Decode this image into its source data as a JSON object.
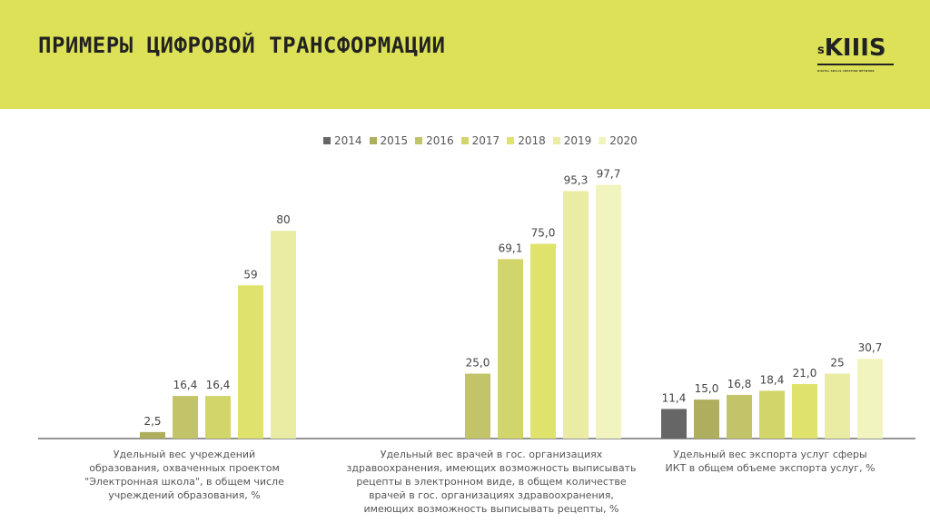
{
  "header": {
    "title": "ПРИМЕРЫ ЦИФРОВОЙ ТРАНСФОРМАЦИИ",
    "logo_small": "s",
    "logo_big": "KIIIS",
    "logo_tagline": "DIGITAL SKILLS CREATION NETWORK"
  },
  "colors": {
    "header_bg": "#dce157",
    "axis": "#555555",
    "series": [
      "#666666",
      "#aeae5e",
      "#c3c46a",
      "#d2d569",
      "#dfe36b",
      "#eaeca4",
      "#f2f4bf"
    ]
  },
  "chart_data": {
    "type": "bar",
    "legend_position": "top",
    "grid": false,
    "series_names": [
      "2014",
      "2015",
      "2016",
      "2017",
      "2018",
      "2019",
      "2020"
    ],
    "categories": [
      {
        "label_lines": [
          "Удельный вес учреждений",
          "образования, охваченных проектом",
          "\"Электронная школа\", в общем числе",
          "учреждений образования, %"
        ],
        "values": [
          null,
          2.5,
          16.4,
          16.4,
          59,
          80,
          null
        ],
        "value_labels": [
          "",
          "2,5",
          "16,4",
          "16,4",
          "59",
          "80",
          ""
        ]
      },
      {
        "label_lines": [
          "Удельный вес врачей в гос. организациях",
          "здравоохранения, имеющих возможность выписывать",
          "рецепты в электронном виде, в общем количестве",
          "врачей в гос. организациях здравоохранения,",
          "имеющих возможность выписывать рецепты, %"
        ],
        "values": [
          null,
          null,
          25.0,
          69.1,
          75.0,
          95.3,
          97.7
        ],
        "value_labels": [
          "",
          "",
          "25,0",
          "69,1",
          "75,0",
          "95,3",
          "97,7"
        ]
      },
      {
        "label_lines": [
          "Удельный вес экспорта услуг сферы",
          "ИКТ в общем объеме экспорта услуг, %"
        ],
        "values": [
          11.4,
          15.0,
          16.8,
          18.4,
          21.0,
          25,
          30.7
        ],
        "value_labels": [
          "11,4",
          "15,0",
          "16,8",
          "18,4",
          "21,0",
          "25",
          "30,7"
        ]
      }
    ],
    "ylim": [
      0,
      100
    ]
  }
}
